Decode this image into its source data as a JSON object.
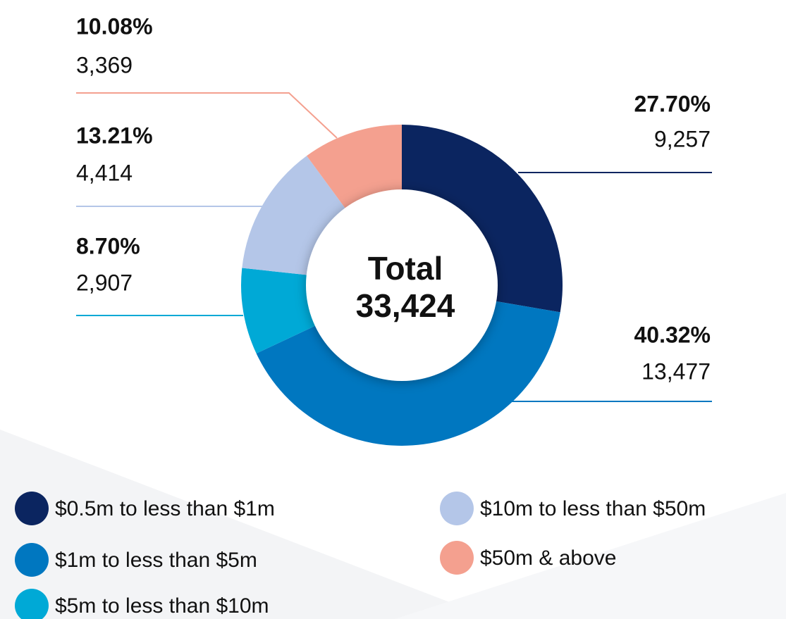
{
  "chart_data": {
    "type": "pie",
    "categories": [
      "$0.5m to less than $1m",
      "$1m to less than $5m",
      "$5m to less than $10m",
      "$10m to less than $50m",
      "$50m & above"
    ],
    "values": [
      9257,
      13477,
      2907,
      4414,
      3369
    ],
    "value_labels": [
      "9,257",
      "13,477",
      "2,907",
      "4,414",
      "3,369"
    ],
    "percents": [
      27.7,
      40.32,
      8.7,
      13.21,
      10.08
    ],
    "percent_labels": [
      "27.70%",
      "40.32%",
      "8.70%",
      "13.21%",
      "10.08%"
    ],
    "colors": [
      "#0b2560",
      "#0077c0",
      "#00a9d6",
      "#b4c6e8",
      "#f4a08f"
    ],
    "center_text": "Total",
    "center_value": 33424,
    "center_value_label": "33,424"
  }
}
